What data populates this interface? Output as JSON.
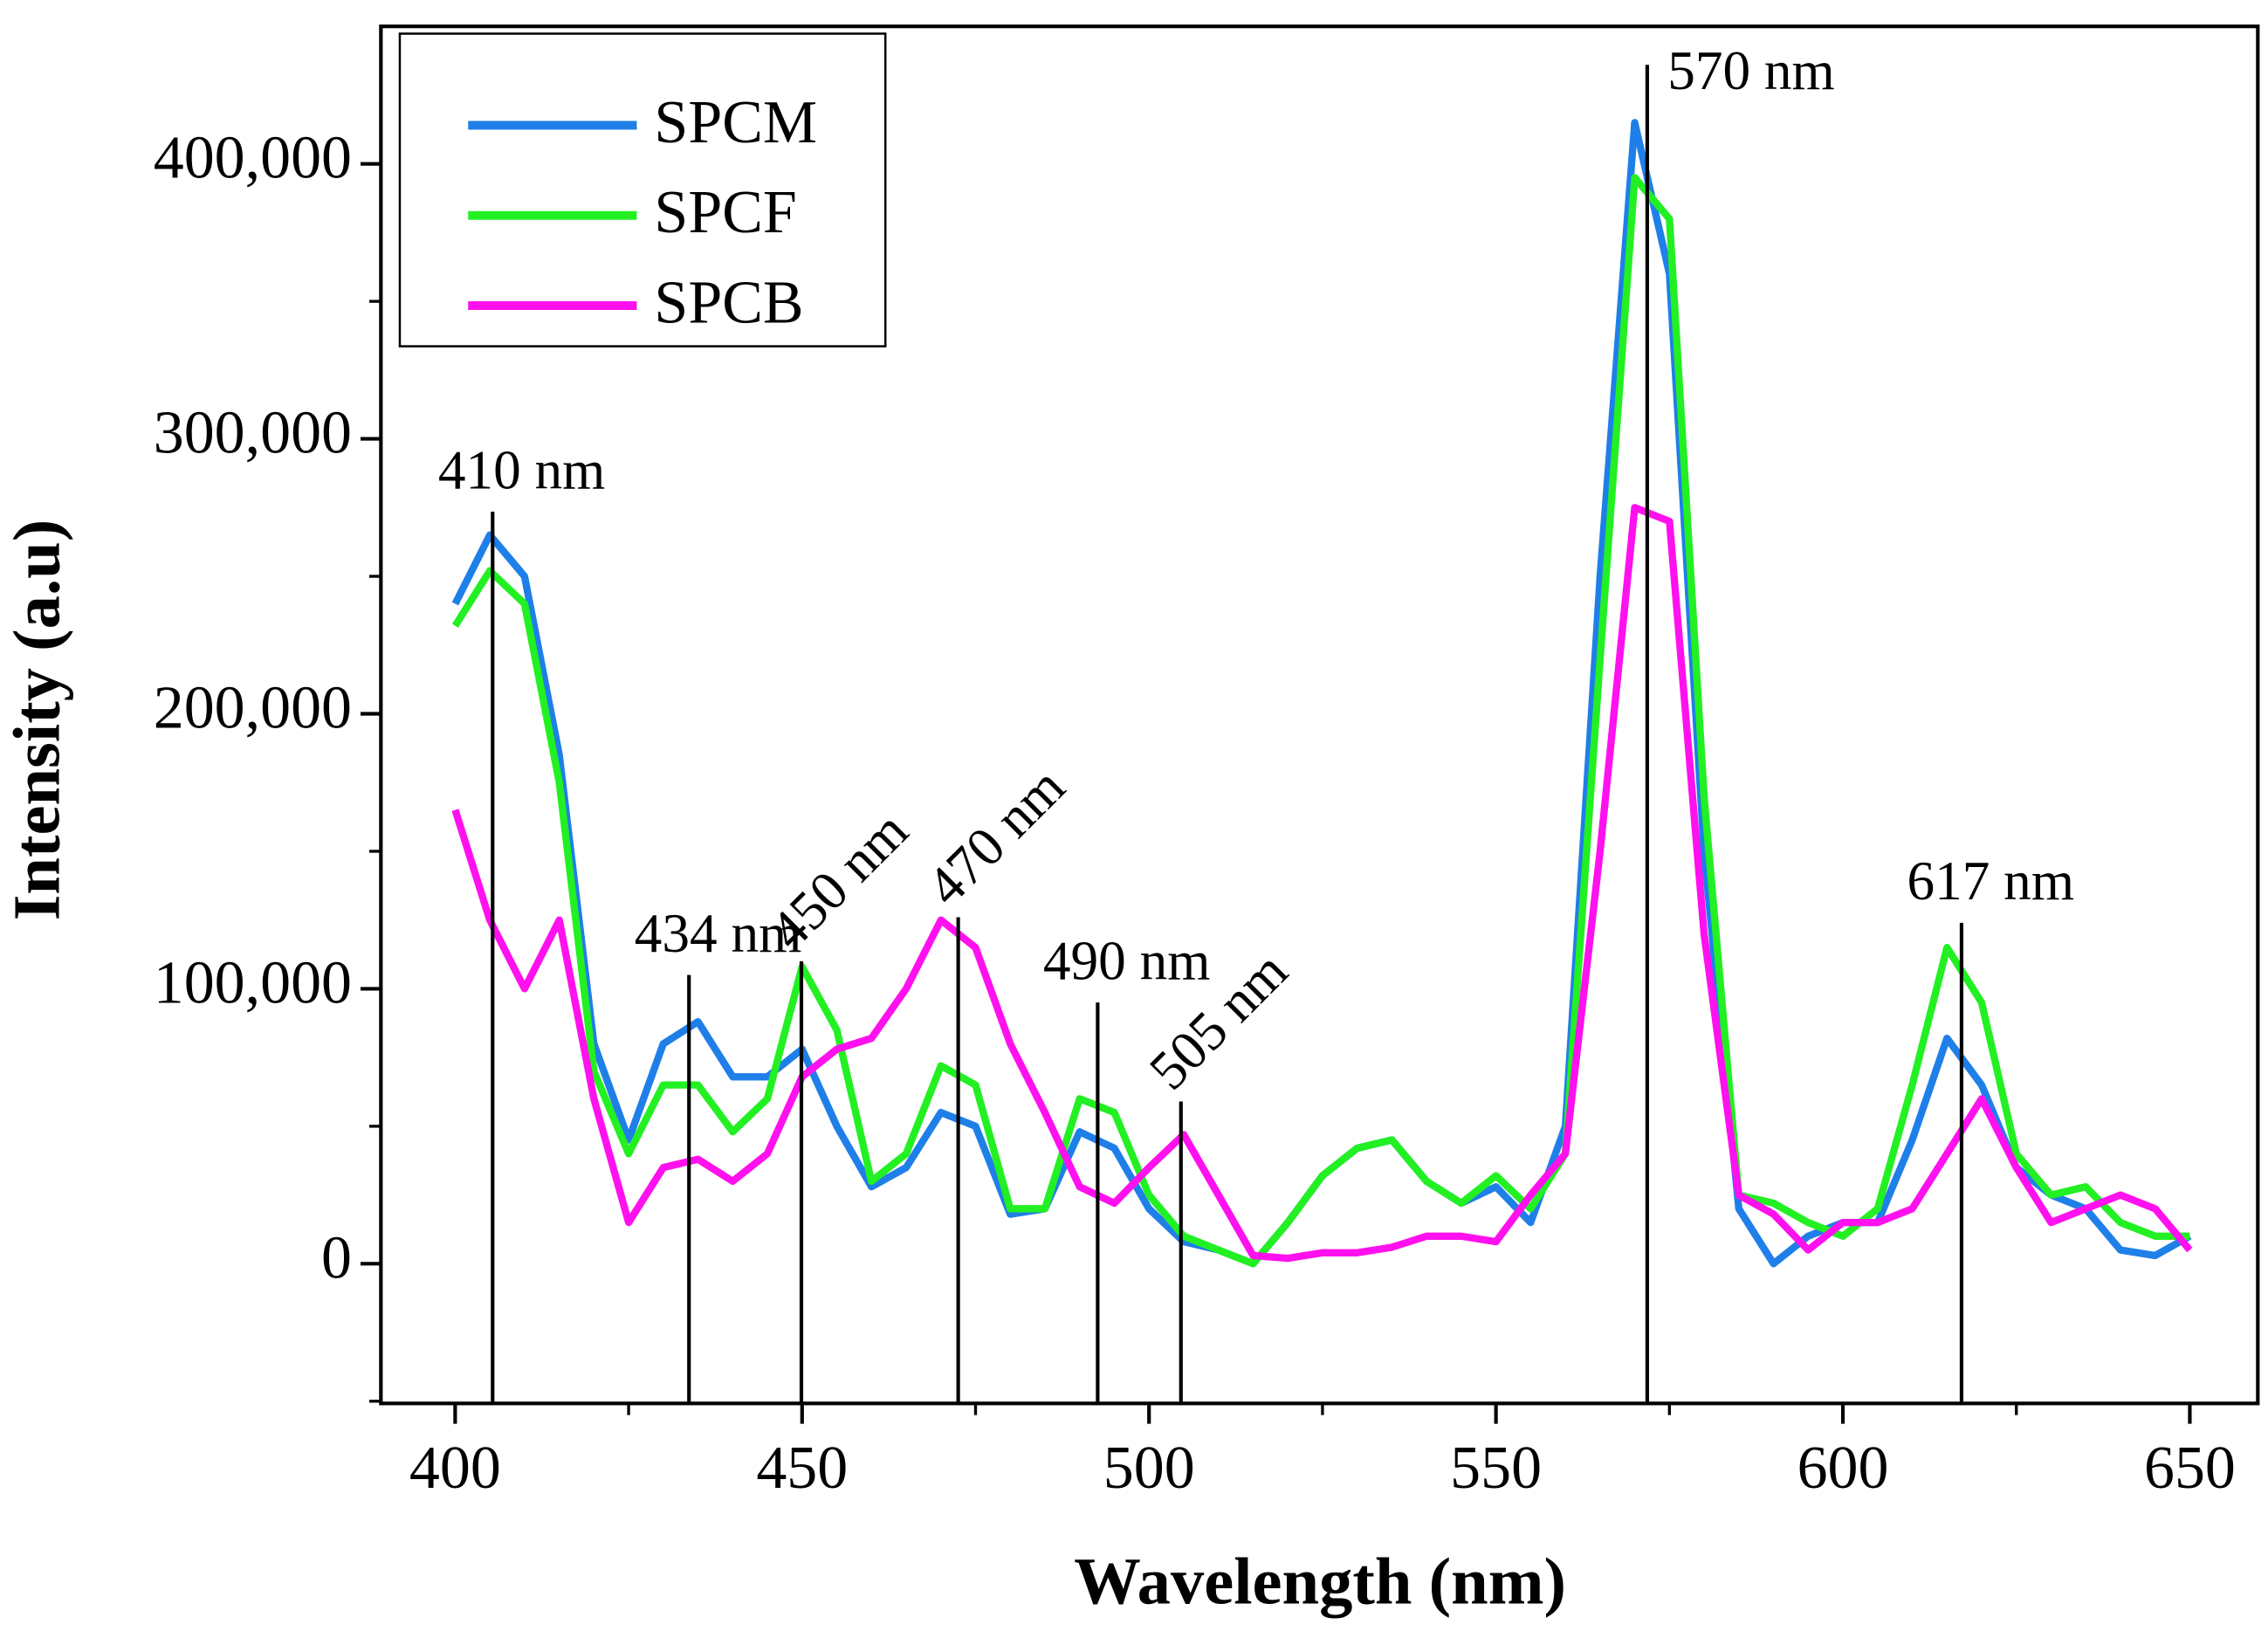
{
  "chart_data": {
    "type": "line",
    "xlabel": "Wavelength (nm)",
    "ylabel": "Intensity (a.u)",
    "xlim": [
      389.3,
      659.8
    ],
    "ylim": [
      -50800,
      450000
    ],
    "xticks": [
      400,
      450,
      500,
      550,
      600,
      650
    ],
    "yticks": [
      0,
      {
        "value": 100000,
        "label": "100,000"
      },
      {
        "value": 200000,
        "label": "200,000"
      },
      {
        "value": 300000,
        "label": "300,000"
      },
      {
        "value": 400000,
        "label": "400,000"
      }
    ],
    "legend": "upper left",
    "x": [
      400,
      405,
      410,
      415,
      420,
      425,
      430,
      435,
      440,
      445,
      450,
      455,
      460,
      465,
      470,
      475,
      480,
      485,
      490,
      495,
      500,
      505,
      510,
      515,
      520,
      525,
      530,
      535,
      540,
      545,
      550,
      555,
      560,
      565,
      570,
      575,
      580,
      585,
      590,
      595,
      600,
      605,
      610,
      615,
      620,
      625,
      630,
      635,
      640,
      645,
      650
    ],
    "series": [
      {
        "name": "SPCM",
        "color": "#1f7fe8",
        "values": [
          240000,
          265000,
          250000,
          185000,
          80000,
          45000,
          80000,
          88000,
          68000,
          68000,
          78000,
          50000,
          28000,
          35000,
          55000,
          50000,
          18000,
          20000,
          48000,
          42000,
          20000,
          8000,
          5000,
          0,
          15000,
          32000,
          42000,
          45000,
          30000,
          22000,
          28000,
          15000,
          50000,
          250000,
          415000,
          360000,
          150000,
          20000,
          0,
          10000,
          15000,
          15000,
          45000,
          82000,
          65000,
          35000,
          25000,
          20000,
          5000,
          3000,
          10000
        ]
      },
      {
        "name": "SPCF",
        "color": "#22f022",
        "values": [
          232000,
          252000,
          240000,
          175000,
          70000,
          40000,
          65000,
          65000,
          48000,
          60000,
          108000,
          85000,
          30000,
          40000,
          72000,
          65000,
          20000,
          20000,
          60000,
          55000,
          25000,
          10000,
          5000,
          0,
          15000,
          32000,
          42000,
          45000,
          30000,
          22000,
          32000,
          20000,
          40000,
          220000,
          395000,
          380000,
          170000,
          25000,
          22000,
          15000,
          10000,
          20000,
          65000,
          115000,
          95000,
          40000,
          25000,
          28000,
          15000,
          10000,
          10000
        ]
      },
      {
        "name": "SPCB",
        "color": "#ff10ee",
        "values": [
          165000,
          125000,
          100000,
          125000,
          60000,
          15000,
          35000,
          38000,
          30000,
          40000,
          68000,
          78000,
          82000,
          100000,
          125000,
          115000,
          80000,
          55000,
          28000,
          22000,
          35000,
          47000,
          25000,
          3000,
          2000,
          4000,
          4000,
          6000,
          10000,
          10000,
          8000,
          25000,
          40000,
          150000,
          275000,
          270000,
          120000,
          25000,
          18000,
          5000,
          15000,
          15000,
          20000,
          40000,
          60000,
          35000,
          15000,
          20000,
          25000,
          20000,
          5000
        ]
      }
    ],
    "annotations": [
      {
        "text": "410 nm",
        "x": 405.4,
        "y": 273500,
        "rotation": 0
      },
      {
        "text": "434 nm",
        "x": 433.7,
        "y": 105000,
        "rotation": 0
      },
      {
        "text": "450 nm",
        "x": 449.9,
        "y": 110000,
        "rotation": -45
      },
      {
        "text": "470 nm",
        "x": 472.5,
        "y": 126000,
        "rotation": -45
      },
      {
        "text": "490 nm",
        "x": 492.6,
        "y": 95000,
        "rotation": 0
      },
      {
        "text": "505 nm",
        "x": 504.6,
        "y": 59000,
        "rotation": -45
      },
      {
        "text": "570 nm",
        "x": 571.8,
        "y": 436000,
        "rotation": 0
      },
      {
        "text": "617 nm",
        "x": 617.1,
        "y": 124000,
        "rotation": 0
      }
    ]
  }
}
